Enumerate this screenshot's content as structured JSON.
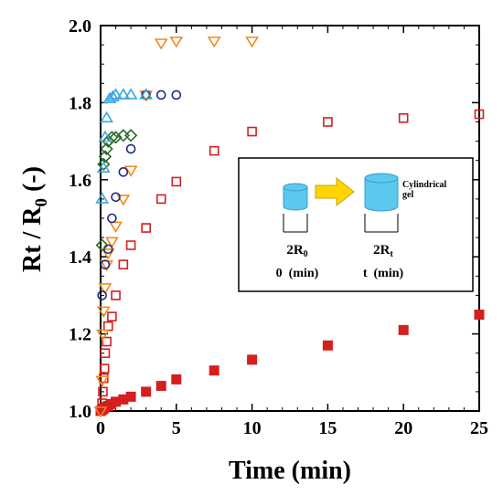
{
  "chart_data": {
    "type": "scatter",
    "xlabel": "Time (min)",
    "ylabel_main": "Rt",
    "ylabel_rest": " / R",
    "ylabel_sub": "0",
    "ylabel_unit": " (-)",
    "xlim": [
      0,
      25
    ],
    "ylim": [
      1.0,
      2.0
    ],
    "x_ticks": [
      0,
      5,
      10,
      15,
      20,
      25
    ],
    "y_ticks": [
      1.0,
      1.2,
      1.4,
      1.6,
      1.8,
      2.0
    ],
    "x_tick_labels": [
      "0",
      "5",
      "10",
      "15",
      "20",
      "25"
    ],
    "y_tick_labels": [
      "1.0",
      "1.2",
      "1.4",
      "1.6",
      "1.8",
      "2.0"
    ],
    "grid": false,
    "series": [
      {
        "marker": "square-filled",
        "color": "#d51f1f",
        "points": [
          [
            0,
            1.0
          ],
          [
            0.1,
            1.003
          ],
          [
            0.2,
            1.006
          ],
          [
            0.3,
            1.01
          ],
          [
            0.5,
            1.013
          ],
          [
            0.7,
            1.018
          ],
          [
            1,
            1.024
          ],
          [
            1.5,
            1.03
          ],
          [
            2,
            1.037
          ],
          [
            3,
            1.05
          ],
          [
            4,
            1.065
          ],
          [
            5,
            1.082
          ],
          [
            7.5,
            1.105
          ],
          [
            10,
            1.133
          ],
          [
            15,
            1.17
          ],
          [
            20,
            1.21
          ],
          [
            25,
            1.25
          ]
        ]
      },
      {
        "marker": "square-open",
        "color": "#d51f1f",
        "points": [
          [
            0,
            1.0
          ],
          [
            0.1,
            1.02
          ],
          [
            0.15,
            1.05
          ],
          [
            0.2,
            1.085
          ],
          [
            0.25,
            1.11
          ],
          [
            0.3,
            1.15
          ],
          [
            0.4,
            1.18
          ],
          [
            0.5,
            1.22
          ],
          [
            0.75,
            1.245
          ],
          [
            1,
            1.3
          ],
          [
            1.5,
            1.38
          ],
          [
            2,
            1.43
          ],
          [
            3,
            1.475
          ],
          [
            4,
            1.55
          ],
          [
            5,
            1.595
          ],
          [
            7.5,
            1.675
          ],
          [
            10,
            1.725
          ],
          [
            15,
            1.75
          ],
          [
            20,
            1.76
          ],
          [
            25,
            1.77
          ]
        ]
      },
      {
        "marker": "triangle-down-open",
        "color": "#f08a1c",
        "points": [
          [
            0,
            1.0
          ],
          [
            0.1,
            1.08
          ],
          [
            0.15,
            1.2
          ],
          [
            0.2,
            1.26
          ],
          [
            0.3,
            1.32
          ],
          [
            0.4,
            1.38
          ],
          [
            0.5,
            1.41
          ],
          [
            0.75,
            1.44
          ],
          [
            1,
            1.48
          ],
          [
            1.5,
            1.55
          ],
          [
            2,
            1.625
          ],
          [
            3,
            1.82
          ],
          [
            4,
            1.955
          ],
          [
            5,
            1.96
          ],
          [
            7.5,
            1.96
          ],
          [
            10,
            1.96
          ]
        ]
      },
      {
        "marker": "circle-open",
        "color": "#1f2a8c",
        "points": [
          [
            0.1,
            1.3
          ],
          [
            0.3,
            1.38
          ],
          [
            0.5,
            1.42
          ],
          [
            0.75,
            1.5
          ],
          [
            1,
            1.555
          ],
          [
            1.5,
            1.62
          ],
          [
            2,
            1.68
          ],
          [
            3,
            1.82
          ],
          [
            4,
            1.82
          ],
          [
            5,
            1.82
          ]
        ]
      },
      {
        "marker": "diamond-open",
        "color": "#2c6b2c",
        "points": [
          [
            0.1,
            1.43
          ],
          [
            0.2,
            1.64
          ],
          [
            0.3,
            1.66
          ],
          [
            0.4,
            1.68
          ],
          [
            0.5,
            1.7
          ],
          [
            0.75,
            1.71
          ],
          [
            1,
            1.71
          ],
          [
            1.5,
            1.715
          ],
          [
            2,
            1.715
          ]
        ]
      },
      {
        "marker": "triangle-up-open",
        "color": "#3aa6dc",
        "points": [
          [
            0.1,
            1.55
          ],
          [
            0.2,
            1.63
          ],
          [
            0.3,
            1.71
          ],
          [
            0.4,
            1.76
          ],
          [
            0.6,
            1.81
          ],
          [
            0.8,
            1.815
          ],
          [
            1,
            1.82
          ],
          [
            1.5,
            1.82
          ],
          [
            2,
            1.82
          ],
          [
            3,
            1.82
          ]
        ]
      }
    ]
  },
  "inset": {
    "arrow_color": "#ffd400",
    "cylinder_color": "#5bc8f0",
    "label_small_main": "2R",
    "label_small_sub": "0",
    "label_large_main": "2R",
    "label_large_sub": "t",
    "time_small": "0  (min)",
    "time_large": "t  (min)",
    "caption_line1": "Cylindrical",
    "caption_line2": "gel"
  }
}
